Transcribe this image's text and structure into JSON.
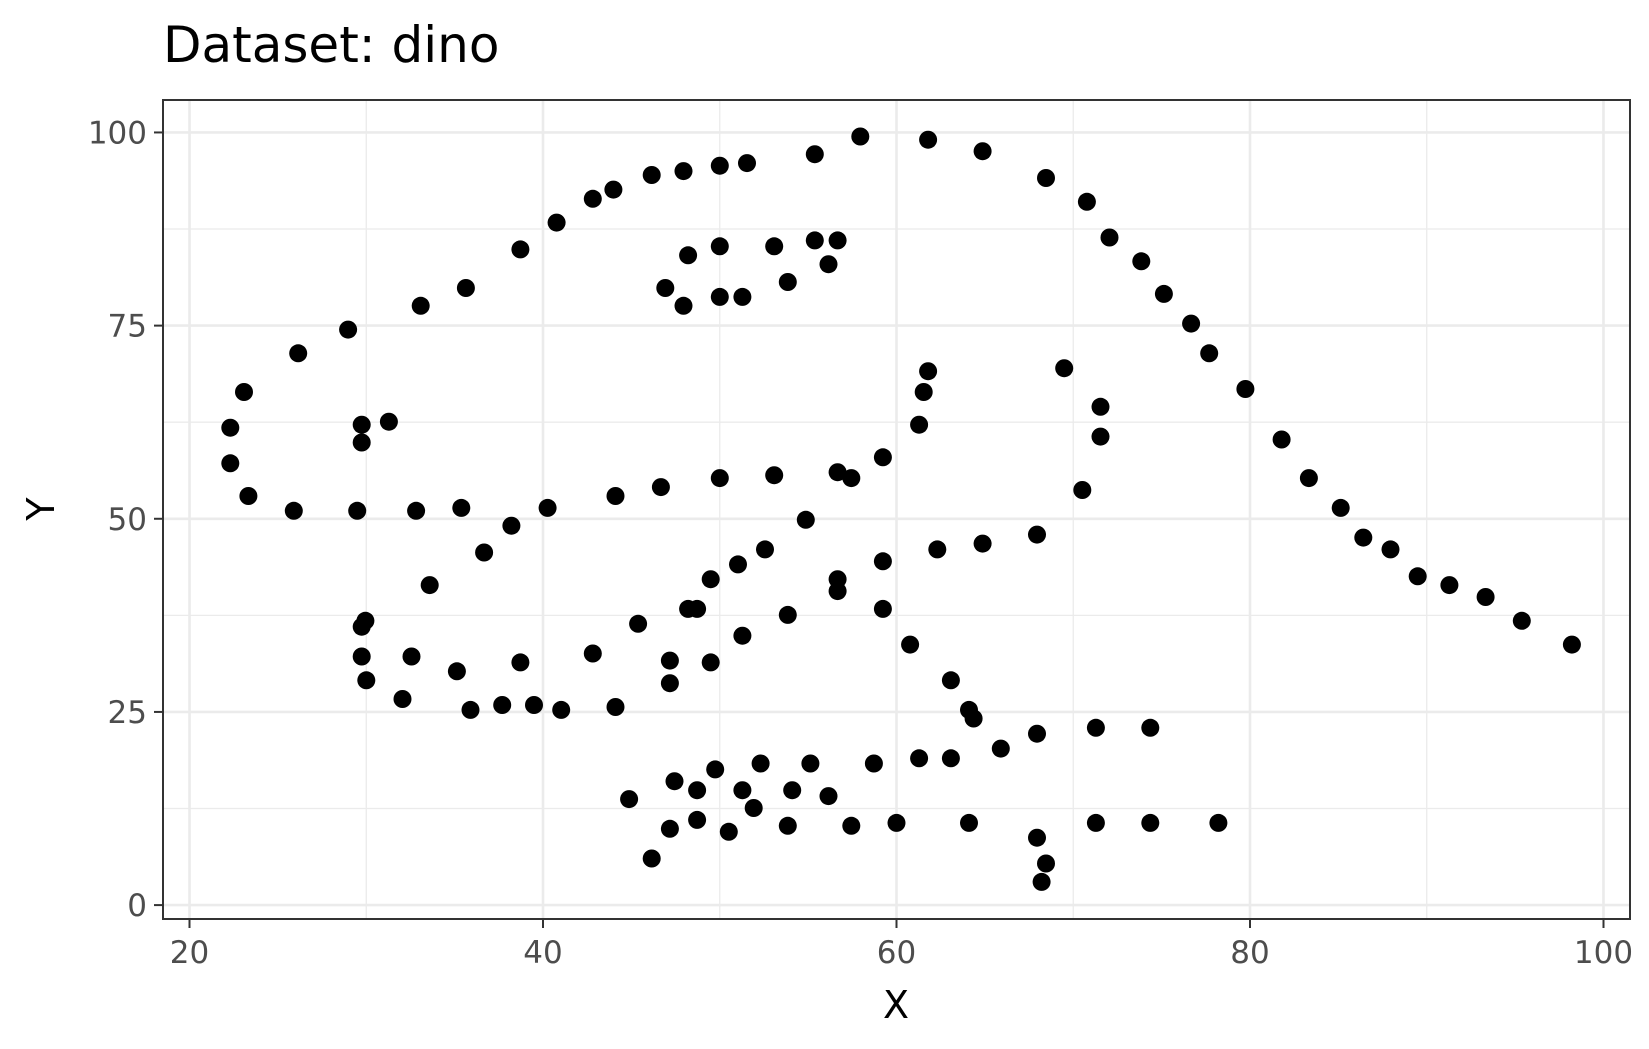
{
  "chart_data": {
    "type": "scatter",
    "title": "Dataset: dino",
    "xlabel": "X",
    "ylabel": "Y",
    "xlim": [
      18.5,
      101.5
    ],
    "ylim": [
      -1.8,
      104.2
    ],
    "xticks": [
      20,
      40,
      60,
      80,
      100
    ],
    "yticks": [
      0,
      25,
      50,
      75,
      100
    ],
    "grid": true,
    "colors": {
      "points": "#000000",
      "grid": "#ebebeb",
      "border": "#333333"
    },
    "points": [
      [
        55.38,
        97.18
      ],
      [
        51.54,
        96.03
      ],
      [
        46.15,
        94.49
      ],
      [
        42.82,
        91.41
      ],
      [
        40.77,
        88.33
      ],
      [
        38.72,
        84.87
      ],
      [
        35.64,
        79.87
      ],
      [
        33.08,
        77.56
      ],
      [
        28.97,
        74.49
      ],
      [
        26.15,
        71.41
      ],
      [
        23.08,
        66.41
      ],
      [
        22.31,
        61.79
      ],
      [
        22.31,
        57.18
      ],
      [
        23.33,
        52.95
      ],
      [
        25.9,
        51.03
      ],
      [
        29.49,
        51.03
      ],
      [
        32.82,
        51.03
      ],
      [
        35.38,
        51.41
      ],
      [
        40.26,
        51.41
      ],
      [
        44.1,
        52.95
      ],
      [
        46.67,
        54.1
      ],
      [
        50.0,
        55.26
      ],
      [
        53.08,
        55.64
      ],
      [
        56.67,
        56.03
      ],
      [
        59.23,
        57.95
      ],
      [
        61.28,
        62.18
      ],
      [
        61.54,
        66.41
      ],
      [
        61.79,
        69.1
      ],
      [
        57.44,
        55.26
      ],
      [
        54.87,
        49.87
      ],
      [
        52.56,
        46.03
      ],
      [
        48.72,
        38.33
      ],
      [
        47.18,
        28.72
      ],
      [
        44.87,
        13.72
      ],
      [
        47.95,
        95.0
      ],
      [
        50.0,
        95.7
      ],
      [
        43.98,
        92.6
      ],
      [
        57.95,
        99.47
      ],
      [
        61.79,
        99.06
      ],
      [
        64.87,
        97.57
      ],
      [
        68.46,
        94.11
      ],
      [
        70.77,
        91.03
      ],
      [
        72.05,
        86.41
      ],
      [
        73.85,
        83.33
      ],
      [
        75.13,
        79.1
      ],
      [
        76.67,
        75.26
      ],
      [
        77.69,
        71.41
      ],
      [
        79.74,
        66.79
      ],
      [
        81.79,
        60.26
      ],
      [
        83.33,
        55.26
      ],
      [
        85.13,
        51.41
      ],
      [
        86.41,
        47.56
      ],
      [
        87.95,
        46.03
      ],
      [
        89.49,
        42.56
      ],
      [
        91.28,
        41.41
      ],
      [
        93.33,
        39.87
      ],
      [
        95.38,
        36.79
      ],
      [
        98.21,
        33.72
      ],
      [
        56.67,
        40.64
      ],
      [
        59.23,
        38.33
      ],
      [
        60.77,
        33.72
      ],
      [
        63.08,
        29.1
      ],
      [
        64.1,
        25.26
      ],
      [
        64.36,
        24.15
      ],
      [
        67.95,
        22.18
      ],
      [
        71.28,
        22.95
      ],
      [
        74.36,
        22.95
      ],
      [
        78.21,
        10.64
      ],
      [
        74.36,
        10.64
      ],
      [
        71.28,
        10.64
      ],
      [
        67.95,
        8.72
      ],
      [
        68.21,
        3.0
      ],
      [
        68.46,
        5.38
      ],
      [
        64.1,
        10.64
      ],
      [
        60.0,
        10.64
      ],
      [
        57.44,
        10.26
      ],
      [
        53.85,
        10.26
      ],
      [
        50.51,
        9.49
      ],
      [
        47.18,
        9.87
      ],
      [
        46.15,
        6.03
      ],
      [
        48.72,
        11.03
      ],
      [
        51.92,
        12.56
      ],
      [
        54.1,
        14.87
      ],
      [
        56.15,
        14.1
      ],
      [
        58.72,
        18.33
      ],
      [
        61.28,
        19.0
      ],
      [
        63.08,
        19.0
      ],
      [
        65.9,
        20.26
      ],
      [
        55.13,
        18.33
      ],
      [
        52.31,
        18.33
      ],
      [
        49.74,
        17.56
      ],
      [
        47.44,
        16.03
      ],
      [
        48.72,
        14.87
      ],
      [
        51.28,
        14.87
      ],
      [
        51.28,
        34.87
      ],
      [
        53.85,
        37.56
      ],
      [
        56.67,
        42.18
      ],
      [
        59.23,
        44.49
      ],
      [
        62.31,
        46.03
      ],
      [
        64.87,
        46.79
      ],
      [
        67.95,
        47.95
      ],
      [
        70.51,
        53.72
      ],
      [
        71.54,
        60.64
      ],
      [
        71.54,
        64.49
      ],
      [
        69.49,
        69.49
      ],
      [
        46.92,
        79.87
      ],
      [
        48.21,
        84.1
      ],
      [
        50.0,
        85.26
      ],
      [
        53.08,
        85.26
      ],
      [
        55.38,
        86.03
      ],
      [
        56.67,
        86.03
      ],
      [
        56.15,
        82.95
      ],
      [
        53.85,
        80.64
      ],
      [
        51.28,
        78.72
      ],
      [
        50.0,
        78.72
      ],
      [
        47.95,
        77.56
      ],
      [
        29.74,
        59.87
      ],
      [
        29.74,
        62.18
      ],
      [
        31.28,
        62.56
      ],
      [
        35.13,
        30.26
      ],
      [
        37.69,
        25.9
      ],
      [
        39.49,
        25.9
      ],
      [
        41.03,
        25.26
      ],
      [
        44.1,
        25.64
      ],
      [
        42.82,
        32.56
      ],
      [
        45.38,
        36.41
      ],
      [
        47.18,
        31.64
      ],
      [
        49.49,
        31.41
      ],
      [
        51.03,
        44.1
      ],
      [
        49.49,
        42.18
      ],
      [
        48.21,
        38.33
      ],
      [
        38.21,
        49.1
      ],
      [
        36.67,
        45.64
      ],
      [
        33.59,
        41.41
      ],
      [
        29.95,
        36.79
      ],
      [
        29.74,
        36.03
      ],
      [
        29.74,
        32.18
      ],
      [
        30.0,
        29.1
      ],
      [
        32.05,
        26.67
      ],
      [
        35.9,
        25.26
      ],
      [
        38.72,
        31.41
      ],
      [
        32.56,
        32.18
      ]
    ]
  }
}
